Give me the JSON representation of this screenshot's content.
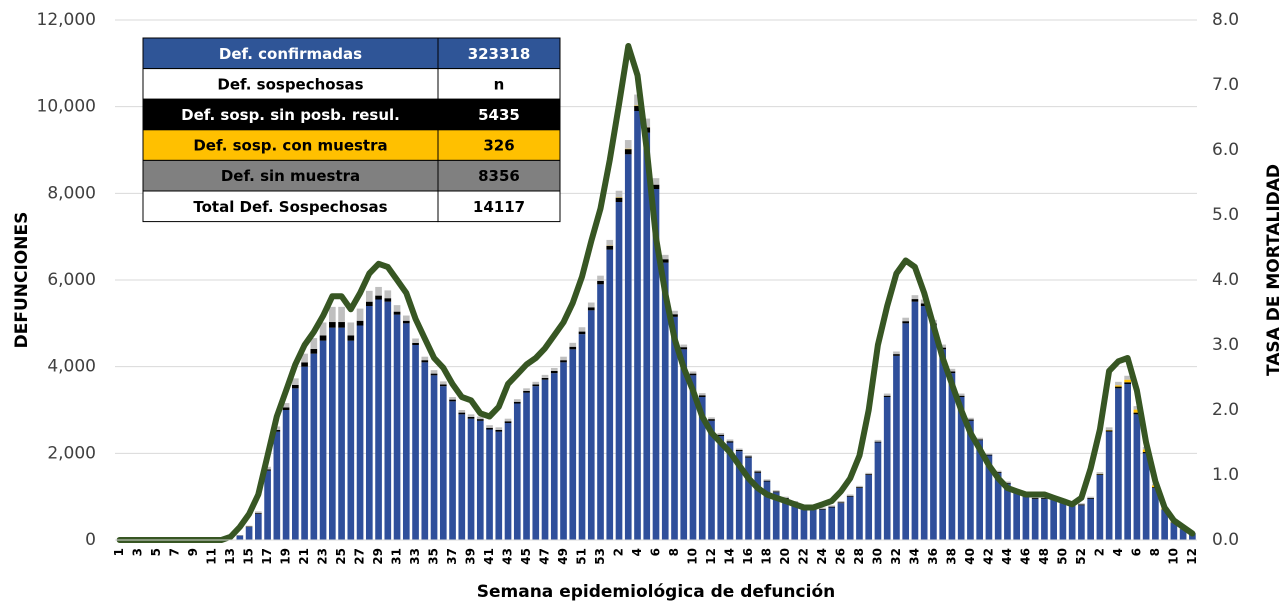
{
  "chart_data": {
    "type": "stacked_bar_line",
    "x_label": "Semana epidemiológica de defunción",
    "y_label": "DEFUNCIONES",
    "y2_label": "TASA DE MORTALIDAD",
    "categories": [
      "1",
      null,
      "3",
      null,
      "5",
      null,
      "7",
      null,
      "9",
      null,
      "11",
      null,
      "13",
      null,
      "15",
      null,
      "17",
      null,
      "19",
      null,
      "21",
      null,
      "23",
      null,
      "25",
      null,
      "27",
      null,
      "29",
      null,
      "31",
      null,
      "33",
      null,
      "35",
      null,
      "37",
      null,
      "39",
      null,
      "41",
      null,
      "43",
      null,
      "45",
      null,
      "47",
      null,
      "49",
      null,
      "51",
      null,
      "53",
      null,
      "2",
      null,
      "4",
      null,
      "6",
      null,
      "8",
      null,
      "10",
      null,
      "12",
      null,
      "14",
      null,
      "16",
      null,
      "18",
      null,
      "20",
      null,
      "22",
      null,
      "24",
      null,
      "26",
      null,
      "28",
      null,
      "30",
      null,
      "32",
      null,
      "34",
      null,
      "36",
      null,
      "38",
      null,
      "40",
      null,
      "42",
      null,
      "44",
      null,
      "46",
      null,
      "48",
      null,
      "50",
      null,
      "52",
      null,
      "2",
      null,
      "4",
      null,
      "6",
      null,
      "8",
      null,
      "10",
      null,
      "12"
    ],
    "series": [
      {
        "color": "#2f4f9b",
        "values": [
          0,
          0,
          0,
          0,
          0,
          0,
          0,
          0,
          0,
          0,
          0,
          0,
          10,
          100,
          300,
          600,
          1600,
          2500,
          3000,
          3500,
          4000,
          4300,
          4600,
          4900,
          4900,
          4600,
          4950,
          5400,
          5550,
          5500,
          5200,
          5000,
          4500,
          4100,
          3800,
          3550,
          3200,
          2900,
          2800,
          2750,
          2550,
          2500,
          2700,
          3150,
          3400,
          3550,
          3700,
          3850,
          4100,
          4400,
          4750,
          5300,
          5900,
          6700,
          7800,
          8900,
          9900,
          9400,
          8100,
          6400,
          5150,
          4400,
          3800,
          3300,
          2750,
          2400,
          2250,
          2050,
          1900,
          1550,
          1350,
          1100,
          950,
          850,
          750,
          700,
          700,
          750,
          850,
          1000,
          1200,
          1500,
          2250,
          3300,
          4250,
          5000,
          5500,
          5400,
          4950,
          4400,
          3850,
          3300,
          2750,
          2300,
          1950,
          1550,
          1300,
          1100,
          1000,
          950,
          950,
          950,
          900,
          800,
          800,
          950,
          1500,
          2500,
          3500,
          3600,
          2900,
          2000,
          1200,
          700,
          400,
          250,
          150
        ]
      },
      {
        "color": "#000000",
        "values": [
          0,
          0,
          0,
          0,
          0,
          0,
          0,
          0,
          0,
          0,
          0,
          0,
          0,
          5,
          10,
          20,
          30,
          40,
          60,
          80,
          100,
          110,
          120,
          130,
          130,
          120,
          110,
          100,
          90,
          80,
          70,
          60,
          50,
          50,
          40,
          40,
          40,
          40,
          40,
          40,
          40,
          40,
          40,
          40,
          40,
          40,
          40,
          50,
          50,
          60,
          60,
          70,
          80,
          90,
          100,
          120,
          120,
          120,
          100,
          80,
          60,
          50,
          40,
          40,
          40,
          30,
          30,
          30,
          30,
          30,
          20,
          20,
          20,
          20,
          20,
          20,
          20,
          20,
          20,
          20,
          20,
          20,
          20,
          30,
          40,
          50,
          60,
          60,
          50,
          40,
          40,
          30,
          30,
          20,
          20,
          20,
          20,
          20,
          20,
          20,
          20,
          20,
          20,
          20,
          20,
          20,
          20,
          30,
          40,
          40,
          40,
          30,
          20,
          10,
          10,
          10,
          5
        ]
      },
      {
        "color": "#ffc000",
        "values": [
          0,
          0,
          0,
          0,
          0,
          0,
          0,
          0,
          0,
          0,
          0,
          0,
          0,
          0,
          0,
          0,
          0,
          0,
          0,
          0,
          0,
          0,
          0,
          0,
          0,
          0,
          0,
          0,
          0,
          0,
          0,
          0,
          0,
          0,
          0,
          0,
          0,
          0,
          0,
          0,
          0,
          0,
          0,
          0,
          0,
          0,
          0,
          0,
          0,
          0,
          0,
          0,
          0,
          5,
          10,
          10,
          10,
          5,
          0,
          0,
          0,
          0,
          0,
          0,
          0,
          0,
          0,
          0,
          0,
          0,
          0,
          0,
          0,
          0,
          0,
          0,
          0,
          0,
          0,
          0,
          0,
          0,
          0,
          0,
          0,
          0,
          0,
          0,
          0,
          0,
          0,
          0,
          0,
          0,
          0,
          0,
          0,
          0,
          0,
          0,
          0,
          0,
          0,
          0,
          0,
          0,
          5,
          10,
          30,
          60,
          70,
          60,
          40,
          20,
          10,
          5,
          0
        ]
      },
      {
        "color": "#bfbfbf",
        "values": [
          0,
          0,
          0,
          0,
          0,
          0,
          0,
          0,
          0,
          0,
          0,
          0,
          0,
          10,
          20,
          40,
          60,
          80,
          100,
          150,
          200,
          250,
          300,
          350,
          350,
          300,
          280,
          250,
          200,
          180,
          150,
          120,
          100,
          80,
          80,
          70,
          60,
          60,
          60,
          60,
          60,
          60,
          60,
          60,
          60,
          60,
          70,
          70,
          80,
          90,
          100,
          110,
          120,
          130,
          150,
          200,
          250,
          200,
          150,
          100,
          80,
          60,
          50,
          50,
          40,
          40,
          40,
          30,
          30,
          30,
          30,
          30,
          30,
          30,
          30,
          30,
          30,
          30,
          30,
          30,
          30,
          30,
          40,
          50,
          60,
          80,
          90,
          90,
          80,
          70,
          60,
          50,
          40,
          40,
          30,
          30,
          30,
          30,
          30,
          30,
          30,
          30,
          30,
          30,
          30,
          30,
          40,
          60,
          80,
          90,
          80,
          60,
          40,
          30,
          20,
          20,
          10
        ]
      },
      {
        "color": "#375623",
        "axis": "y2",
        "values": [
          0,
          0,
          0,
          0,
          0,
          0,
          0,
          0,
          0,
          0,
          0,
          0,
          0.05,
          0.2,
          0.4,
          0.7,
          1.3,
          1.9,
          2.3,
          2.7,
          3.0,
          3.2,
          3.45,
          3.75,
          3.75,
          3.55,
          3.8,
          4.1,
          4.25,
          4.2,
          4.0,
          3.8,
          3.4,
          3.1,
          2.8,
          2.65,
          2.4,
          2.2,
          2.15,
          1.95,
          1.9,
          2.05,
          2.4,
          2.55,
          2.7,
          2.8,
          2.95,
          3.15,
          3.35,
          3.65,
          4.05,
          4.6,
          5.1,
          5.85,
          6.7,
          7.6,
          7.15,
          6.0,
          4.65,
          3.8,
          3.1,
          2.65,
          2.3,
          1.9,
          1.65,
          1.5,
          1.35,
          1.15,
          0.95,
          0.8,
          0.7,
          0.65,
          0.6,
          0.55,
          0.5,
          0.5,
          0.55,
          0.6,
          0.75,
          0.95,
          1.3,
          2.0,
          3.0,
          3.6,
          4.1,
          4.3,
          4.2,
          3.8,
          3.3,
          2.8,
          2.4,
          2.0,
          1.65,
          1.4,
          1.15,
          0.95,
          0.8,
          0.75,
          0.7,
          0.7,
          0.7,
          0.65,
          0.6,
          0.55,
          0.65,
          1.1,
          1.7,
          2.6,
          2.75,
          2.8,
          2.3,
          1.5,
          0.9,
          0.5,
          0.3,
          0.2,
          0.1
        ]
      }
    ],
    "ylim": [
      0,
      12000
    ],
    "yticks": [
      0,
      {
        "value": 2000,
        "label": "2,000"
      },
      {
        "value": 4000,
        "label": "4,000"
      },
      {
        "value": 6000,
        "label": "6,000"
      },
      {
        "value": 8000,
        "label": "8,000"
      },
      {
        "value": 10000,
        "label": "10,000"
      },
      {
        "value": 12000,
        "label": "12,000"
      }
    ],
    "y2lim": [
      0,
      8
    ],
    "y2ticks": [
      {
        "value": 0,
        "label": "0.0"
      },
      {
        "value": 1,
        "label": "1.0"
      },
      {
        "value": 2,
        "label": "2.0"
      },
      {
        "value": 3,
        "label": "3.0"
      },
      {
        "value": 4,
        "label": "4.0"
      },
      {
        "value": 5,
        "label": "5.0"
      },
      {
        "value": 6,
        "label": "6.0"
      },
      {
        "value": 7,
        "label": "7.0"
      },
      {
        "value": 8,
        "label": "8.0"
      }
    ],
    "grid": true
  },
  "table": {
    "rows": [
      [
        "Def. confirmadas",
        323318
      ],
      [
        "Def. sospechosas",
        "n"
      ],
      [
        "Def. sosp. sin posb. resul.",
        5435
      ],
      [
        "Def. sosp. con  muestra",
        326
      ],
      [
        "Def. sin muestra",
        8356
      ],
      [
        "Total Def. Sospechosas",
        14117
      ]
    ]
  }
}
